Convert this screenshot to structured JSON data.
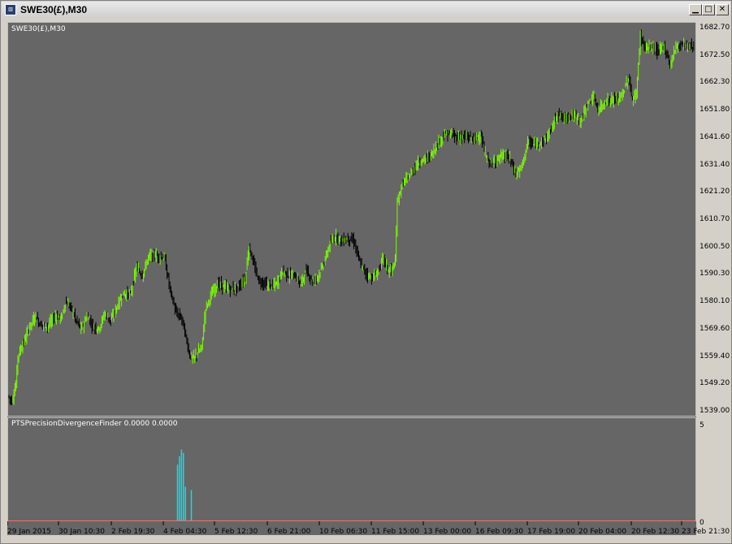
{
  "window": {
    "title": "SWE30(£),M30",
    "icon": "chart-window-icon",
    "buttons": [
      "minimize",
      "maximize",
      "close"
    ]
  },
  "chart": {
    "symbol_label": "SWE30(£),M30",
    "indicator_label": "PTSPrecisionDivergenceFinder 0.0000 0.0000",
    "price_ticks": [
      "1682.70",
      "1672.50",
      "1662.30",
      "1651.80",
      "1641.60",
      "1631.40",
      "1621.20",
      "1610.70",
      "1600.50",
      "1590.30",
      "1580.10",
      "1569.60",
      "1559.40",
      "1549.20",
      "1539.00"
    ],
    "indicator_ticks": [
      "5",
      "0"
    ],
    "time_ticks": [
      "29 Jan 2015",
      "30 Jan 10:30",
      "2 Feb 19:30",
      "4 Feb 04:30",
      "5 Feb 12:30",
      "6 Feb 21:00",
      "10 Feb 06:30",
      "11 Feb 15:00",
      "13 Feb 00:00",
      "16 Feb 09:30",
      "17 Feb 19:00",
      "20 Feb 04:00",
      "20 Feb 12:30",
      "23 Feb 21:30"
    ],
    "colors": {
      "background": "#666666",
      "bull": "#7cfc00",
      "bear": "#000000",
      "histogram": "#00e5ee",
      "zero_line": "#d04040",
      "grid_border": "#c0c0c0"
    }
  },
  "chart_data": {
    "type": "line",
    "price_ylim": [
      1539.0,
      1682.7
    ],
    "price_path": [
      [
        0,
        1545
      ],
      [
        2,
        1543
      ],
      [
        4,
        1549
      ],
      [
        5,
        1560
      ],
      [
        8,
        1565
      ],
      [
        11,
        1571
      ],
      [
        14,
        1575
      ],
      [
        16,
        1572
      ],
      [
        20,
        1571
      ],
      [
        24,
        1575
      ],
      [
        27,
        1574
      ],
      [
        29,
        1580
      ],
      [
        32,
        1578
      ],
      [
        34,
        1574
      ],
      [
        37,
        1570
      ],
      [
        40,
        1575
      ],
      [
        43,
        1571
      ],
      [
        46,
        1570
      ],
      [
        49,
        1576
      ],
      [
        52,
        1573
      ],
      [
        55,
        1578
      ],
      [
        58,
        1583
      ],
      [
        62,
        1583
      ],
      [
        65,
        1593
      ],
      [
        68,
        1590
      ],
      [
        71,
        1597
      ],
      [
        74,
        1598
      ],
      [
        77,
        1597
      ],
      [
        79,
        1597
      ],
      [
        82,
        1585
      ],
      [
        85,
        1576
      ],
      [
        88,
        1574
      ],
      [
        90,
        1567
      ],
      [
        92,
        1560
      ],
      [
        94,
        1559
      ],
      [
        96,
        1561
      ],
      [
        98,
        1563
      ],
      [
        100,
        1578
      ],
      [
        103,
        1583
      ],
      [
        106,
        1587
      ],
      [
        109,
        1586
      ],
      [
        112,
        1585
      ],
      [
        115,
        1585
      ],
      [
        118,
        1587
      ],
      [
        120,
        1589
      ],
      [
        122,
        1601
      ],
      [
        124,
        1595
      ],
      [
        127,
        1588
      ],
      [
        130,
        1587
      ],
      [
        133,
        1586
      ],
      [
        136,
        1587
      ],
      [
        139,
        1592
      ],
      [
        142,
        1590
      ],
      [
        145,
        1590
      ],
      [
        148,
        1587
      ],
      [
        151,
        1592
      ],
      [
        154,
        1588
      ],
      [
        157,
        1590
      ],
      [
        160,
        1595
      ],
      [
        163,
        1602
      ],
      [
        166,
        1605
      ],
      [
        169,
        1603
      ],
      [
        172,
        1604
      ],
      [
        175,
        1603
      ],
      [
        178,
        1595
      ],
      [
        181,
        1591
      ],
      [
        184,
        1589
      ],
      [
        187,
        1591
      ],
      [
        190,
        1597
      ],
      [
        192,
        1592
      ],
      [
        194,
        1592
      ],
      [
        196,
        1595
      ],
      [
        197,
        1618
      ],
      [
        200,
        1625
      ],
      [
        203,
        1627
      ],
      [
        206,
        1631
      ],
      [
        209,
        1633
      ],
      [
        212,
        1634
      ],
      [
        215,
        1636
      ],
      [
        218,
        1640
      ],
      [
        221,
        1643
      ],
      [
        224,
        1643
      ],
      [
        227,
        1642
      ],
      [
        230,
        1642
      ],
      [
        233,
        1642
      ],
      [
        236,
        1641
      ],
      [
        239,
        1643
      ],
      [
        242,
        1634
      ],
      [
        245,
        1632
      ],
      [
        248,
        1634
      ],
      [
        251,
        1635
      ],
      [
        254,
        1634
      ],
      [
        257,
        1628
      ],
      [
        260,
        1631
      ],
      [
        263,
        1640
      ],
      [
        266,
        1639
      ],
      [
        269,
        1640
      ],
      [
        272,
        1641
      ],
      [
        275,
        1645
      ],
      [
        278,
        1651
      ],
      [
        281,
        1649
      ],
      [
        284,
        1650
      ],
      [
        287,
        1650
      ],
      [
        290,
        1648
      ],
      [
        293,
        1654
      ],
      [
        296,
        1657
      ],
      [
        299,
        1652
      ],
      [
        302,
        1655
      ],
      [
        305,
        1656
      ],
      [
        308,
        1656
      ],
      [
        311,
        1658
      ],
      [
        314,
        1664
      ],
      [
        316,
        1656
      ],
      [
        318,
        1658
      ],
      [
        320,
        1680
      ],
      [
        323,
        1675
      ],
      [
        326,
        1676
      ],
      [
        329,
        1674
      ],
      [
        332,
        1676
      ],
      [
        335,
        1669
      ],
      [
        338,
        1676
      ],
      [
        341,
        1677
      ],
      [
        344,
        1676
      ],
      [
        347,
        1676
      ]
    ],
    "histogram_ylim": [
      0,
      5
    ],
    "histogram_bars": [
      {
        "x": 85,
        "value": 3.3
      },
      {
        "x": 86,
        "value": 3.8
      },
      {
        "x": 87,
        "value": 4.2
      },
      {
        "x": 88,
        "value": 4.0
      },
      {
        "x": 89,
        "value": 2.0
      },
      {
        "x": 92,
        "value": 1.8
      }
    ]
  }
}
